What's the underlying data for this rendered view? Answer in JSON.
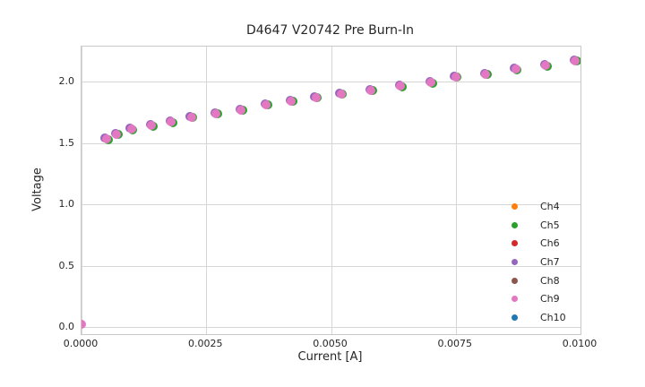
{
  "chart_data": {
    "type": "scatter",
    "title": "D4647 V20742 Pre Burn-In",
    "xlabel": "Current [A]",
    "ylabel": "Voltage",
    "xlim": [
      0,
      0.01
    ],
    "ylim": [
      -0.06,
      2.29
    ],
    "grid": true,
    "legend_position": "lower right",
    "xticks": [
      0,
      0.0025,
      0.005,
      0.0075,
      0.01
    ],
    "xtick_labels": [
      "0.0000",
      "0.0025",
      "0.0050",
      "0.0075",
      "0.0100"
    ],
    "yticks": [
      0,
      0.5,
      1.0,
      1.5,
      2.0
    ],
    "ytick_labels": [
      "0.0",
      "0.5",
      "1.0",
      "1.5",
      "2.0"
    ],
    "series": [
      {
        "name": "Ch4",
        "color": "#ff7f0e"
      },
      {
        "name": "Ch5",
        "color": "#2ca02c"
      },
      {
        "name": "Ch6",
        "color": "#d62728"
      },
      {
        "name": "Ch7",
        "color": "#9467bd"
      },
      {
        "name": "Ch8",
        "color": "#8c564b"
      },
      {
        "name": "Ch9",
        "color": "#e377c2"
      },
      {
        "name": "Ch10",
        "color": "#1f77b4"
      }
    ],
    "series_overlap": true,
    "points": [
      [
        0.0,
        0.02
      ],
      [
        0.0005,
        1.53
      ],
      [
        0.0007,
        1.57
      ],
      [
        0.001,
        1.61
      ],
      [
        0.0014,
        1.64
      ],
      [
        0.0018,
        1.67
      ],
      [
        0.0022,
        1.71
      ],
      [
        0.0027,
        1.74
      ],
      [
        0.0032,
        1.77
      ],
      [
        0.0037,
        1.81
      ],
      [
        0.0042,
        1.84
      ],
      [
        0.0047,
        1.87
      ],
      [
        0.0052,
        1.9
      ],
      [
        0.0058,
        1.93
      ],
      [
        0.0064,
        1.96
      ],
      [
        0.007,
        1.99
      ],
      [
        0.0075,
        2.04
      ],
      [
        0.0081,
        2.06
      ],
      [
        0.0087,
        2.1
      ],
      [
        0.0093,
        2.13
      ],
      [
        0.0099,
        2.17
      ]
    ]
  }
}
